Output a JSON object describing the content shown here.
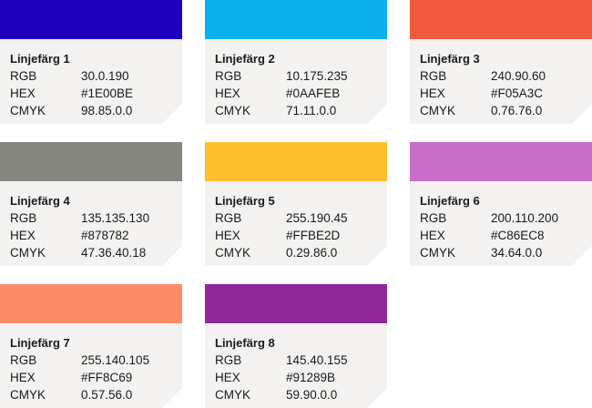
{
  "labels": {
    "rgb": "RGB",
    "hex": "HEX",
    "cmyk": "CMYK"
  },
  "colors": [
    {
      "name": "Linjefärg 1",
      "rgb": "30.0.190",
      "hex": "#1E00BE",
      "cmyk": "98.85.0.0",
      "swatch": "#1E00BE"
    },
    {
      "name": "Linjefärg 2",
      "rgb": "10.175.235",
      "hex": "#0AAFEB",
      "cmyk": "71.11.0.0",
      "swatch": "#0AAFEB"
    },
    {
      "name": "Linjefärg 3",
      "rgb": "240.90.60",
      "hex": "#F05A3C",
      "cmyk": "0.76.76.0",
      "swatch": "#F05A3C"
    },
    {
      "name": "Linjefärg 4",
      "rgb": "135.135.130",
      "hex": "#878782",
      "cmyk": "47.36.40.18",
      "swatch": "#878782"
    },
    {
      "name": "Linjefärg 5",
      "rgb": "255.190.45",
      "hex": "#FFBE2D",
      "cmyk": "0.29.86.0",
      "swatch": "#FFBE2D"
    },
    {
      "name": "Linjefärg 6",
      "rgb": "200.110.200",
      "hex": "#C86EC8",
      "cmyk": "34.64.0.0",
      "swatch": "#C86EC8"
    },
    {
      "name": "Linjefärg 7",
      "rgb": "255.140.105",
      "hex": "#FF8C69",
      "cmyk": "0.57.56.0",
      "swatch": "#FF8C69"
    },
    {
      "name": "Linjefärg 8",
      "rgb": "145.40.155",
      "hex": "#91289B",
      "cmyk": "59.90.0.0",
      "swatch": "#91289B"
    }
  ]
}
